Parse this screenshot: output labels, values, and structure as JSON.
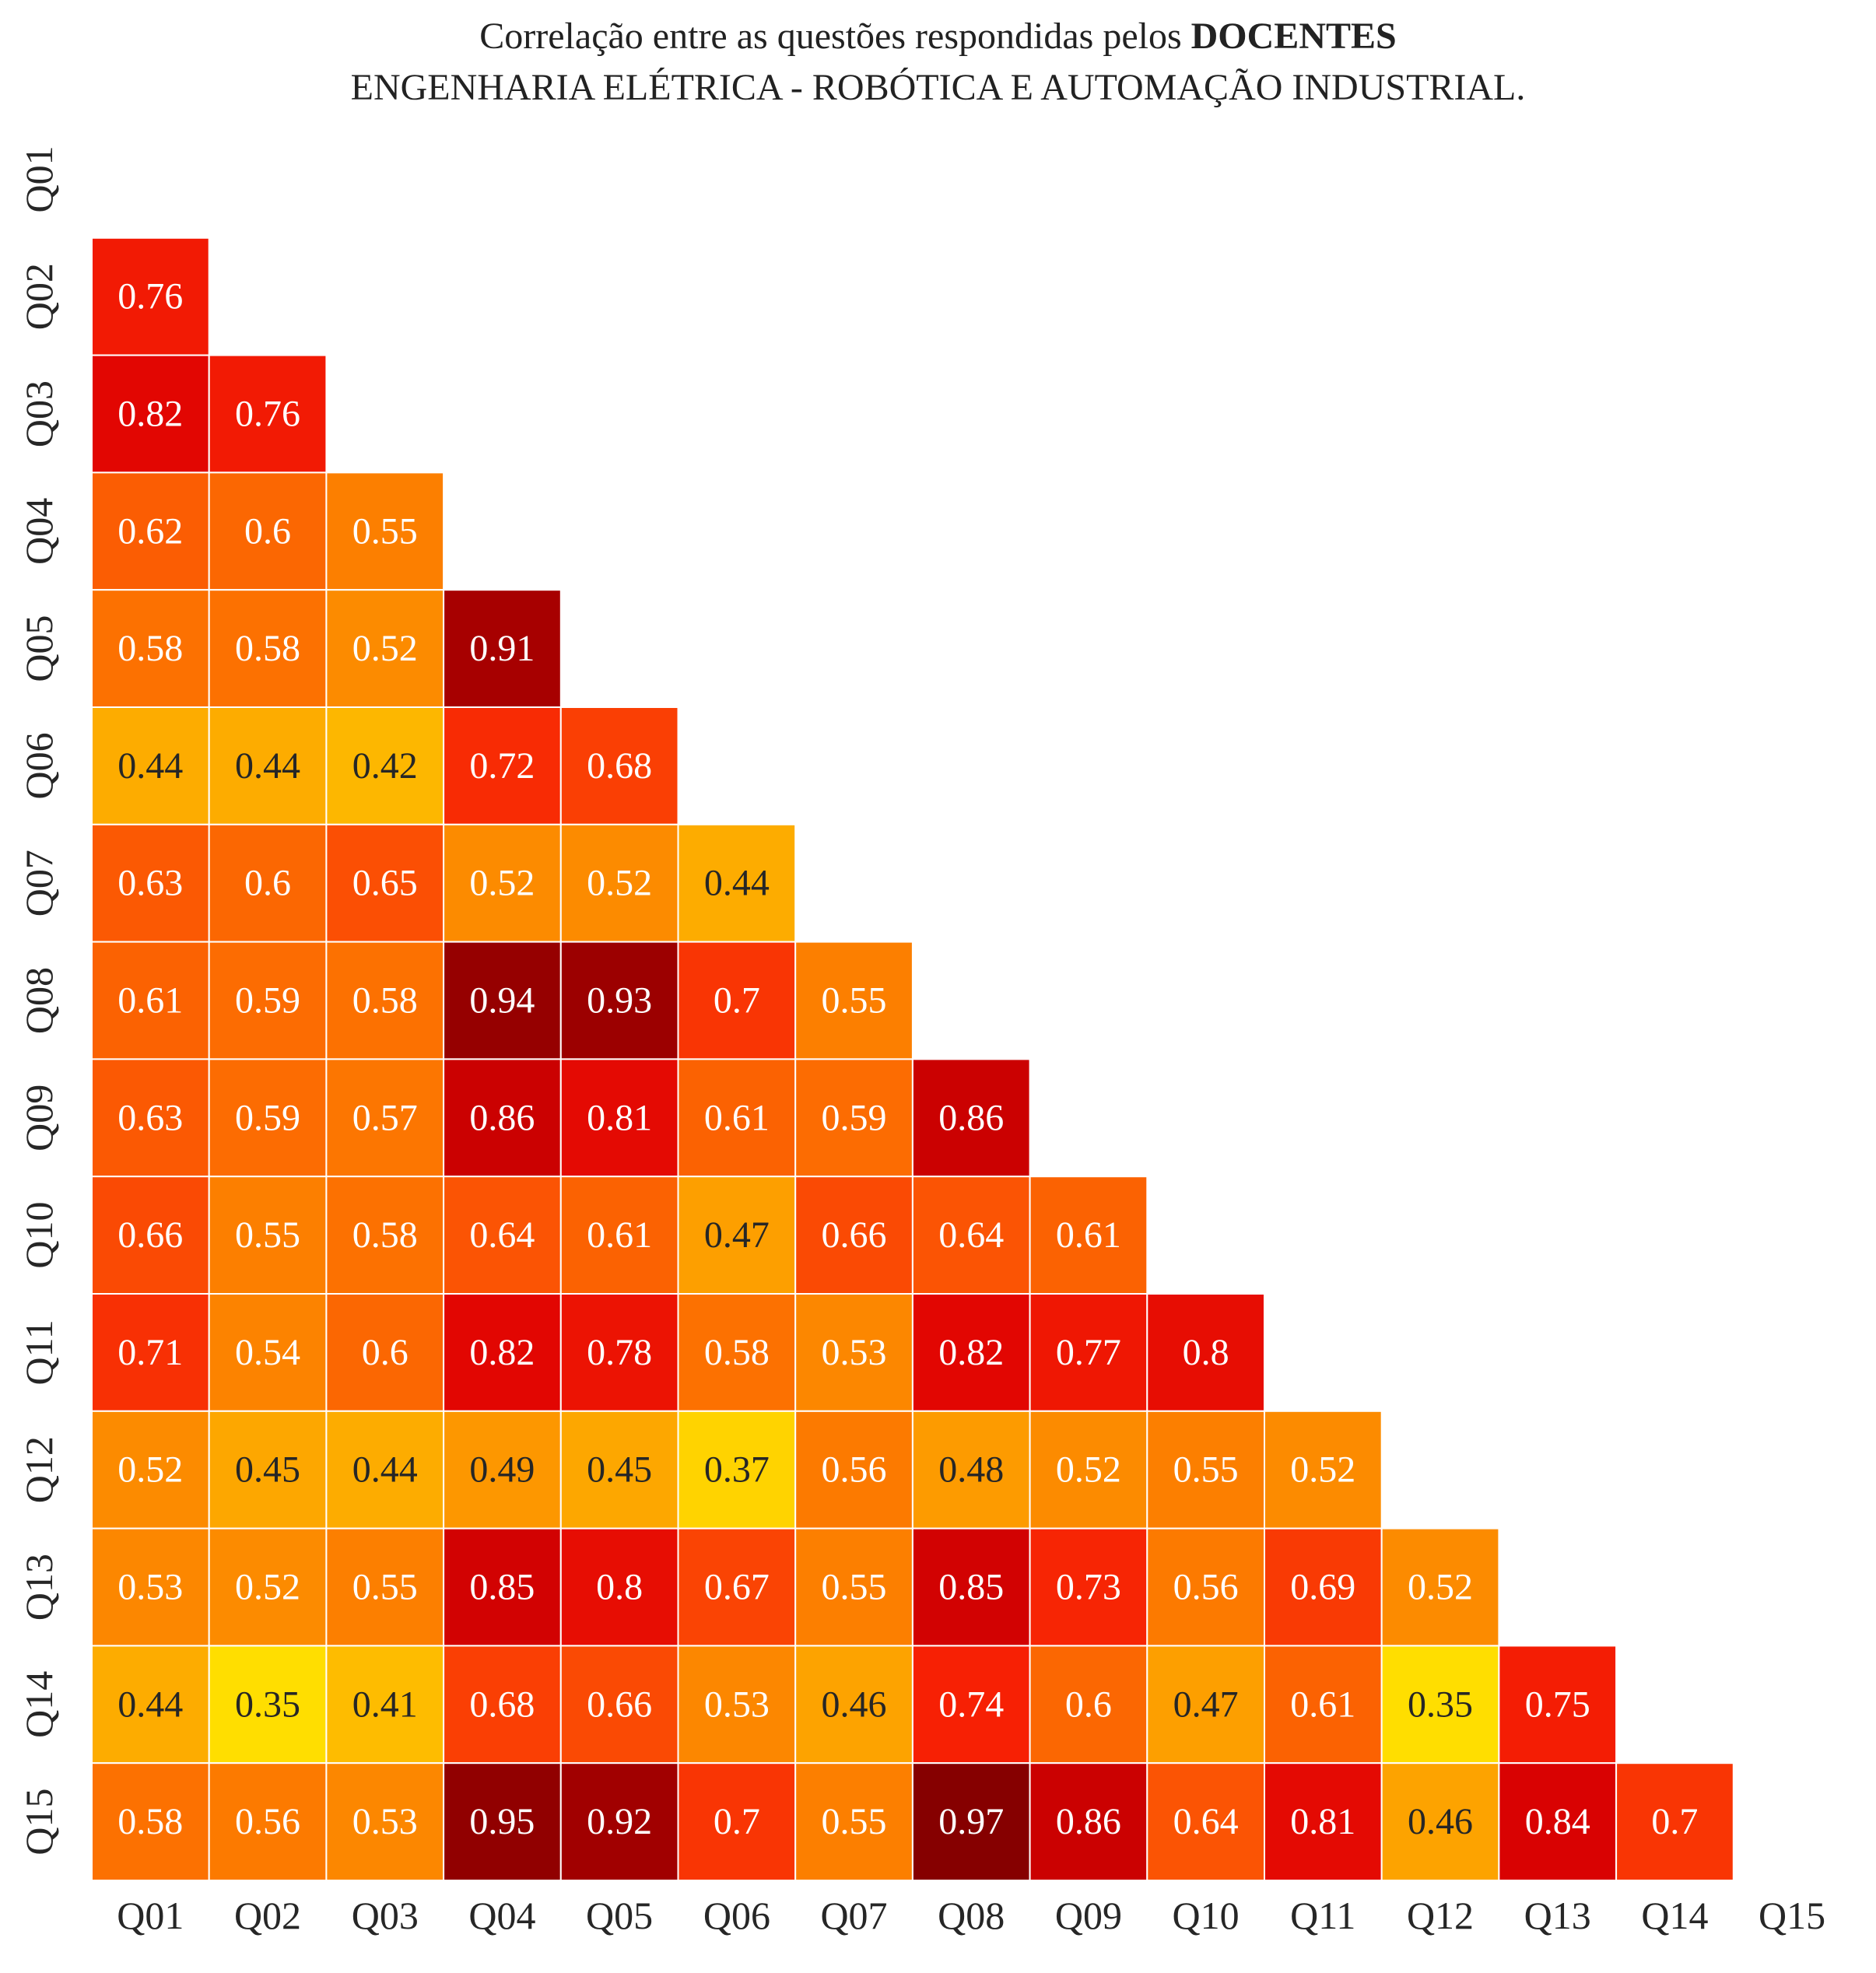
{
  "chart_data": {
    "type": "heatmap",
    "title": {
      "line1_prefix": "Correlação entre as questões respondidas pelos ",
      "line1_bold": "DOCENTES",
      "line2": "ENGENHARIA ELÉTRICA - ROBÓTICA E AUTOMAÇÃO INDUSTRIAL."
    },
    "labels": [
      "Q01",
      "Q02",
      "Q03",
      "Q04",
      "Q05",
      "Q06",
      "Q07",
      "Q08",
      "Q09",
      "Q10",
      "Q11",
      "Q12",
      "Q13",
      "Q14",
      "Q15"
    ],
    "mask": "lower-triangle-excluding-diagonal",
    "colormap": "hot_r",
    "value_range": [
      0.35,
      0.97
    ],
    "grid_line_color": "#ffffff",
    "matrix": [
      [],
      [
        0.76
      ],
      [
        0.82,
        0.76
      ],
      [
        0.62,
        0.6,
        0.55
      ],
      [
        0.58,
        0.58,
        0.52,
        0.91
      ],
      [
        0.44,
        0.44,
        0.42,
        0.72,
        0.68
      ],
      [
        0.63,
        0.6,
        0.65,
        0.52,
        0.52,
        0.44
      ],
      [
        0.61,
        0.59,
        0.58,
        0.94,
        0.93,
        0.7,
        0.55
      ],
      [
        0.63,
        0.59,
        0.57,
        0.86,
        0.81,
        0.61,
        0.59,
        0.86
      ],
      [
        0.66,
        0.55,
        0.58,
        0.64,
        0.61,
        0.47,
        0.66,
        0.64,
        0.61
      ],
      [
        0.71,
        0.54,
        0.6,
        0.82,
        0.78,
        0.58,
        0.53,
        0.82,
        0.77,
        0.8
      ],
      [
        0.52,
        0.45,
        0.44,
        0.49,
        0.45,
        0.37,
        0.56,
        0.48,
        0.52,
        0.55,
        0.52
      ],
      [
        0.53,
        0.52,
        0.55,
        0.85,
        0.8,
        0.67,
        0.55,
        0.85,
        0.73,
        0.56,
        0.69,
        0.52
      ],
      [
        0.44,
        0.35,
        0.41,
        0.68,
        0.66,
        0.53,
        0.46,
        0.74,
        0.6,
        0.47,
        0.61,
        0.35,
        0.75
      ],
      [
        0.58,
        0.56,
        0.53,
        0.95,
        0.92,
        0.7,
        0.55,
        0.97,
        0.86,
        0.64,
        0.81,
        0.46,
        0.84,
        0.7
      ]
    ]
  }
}
